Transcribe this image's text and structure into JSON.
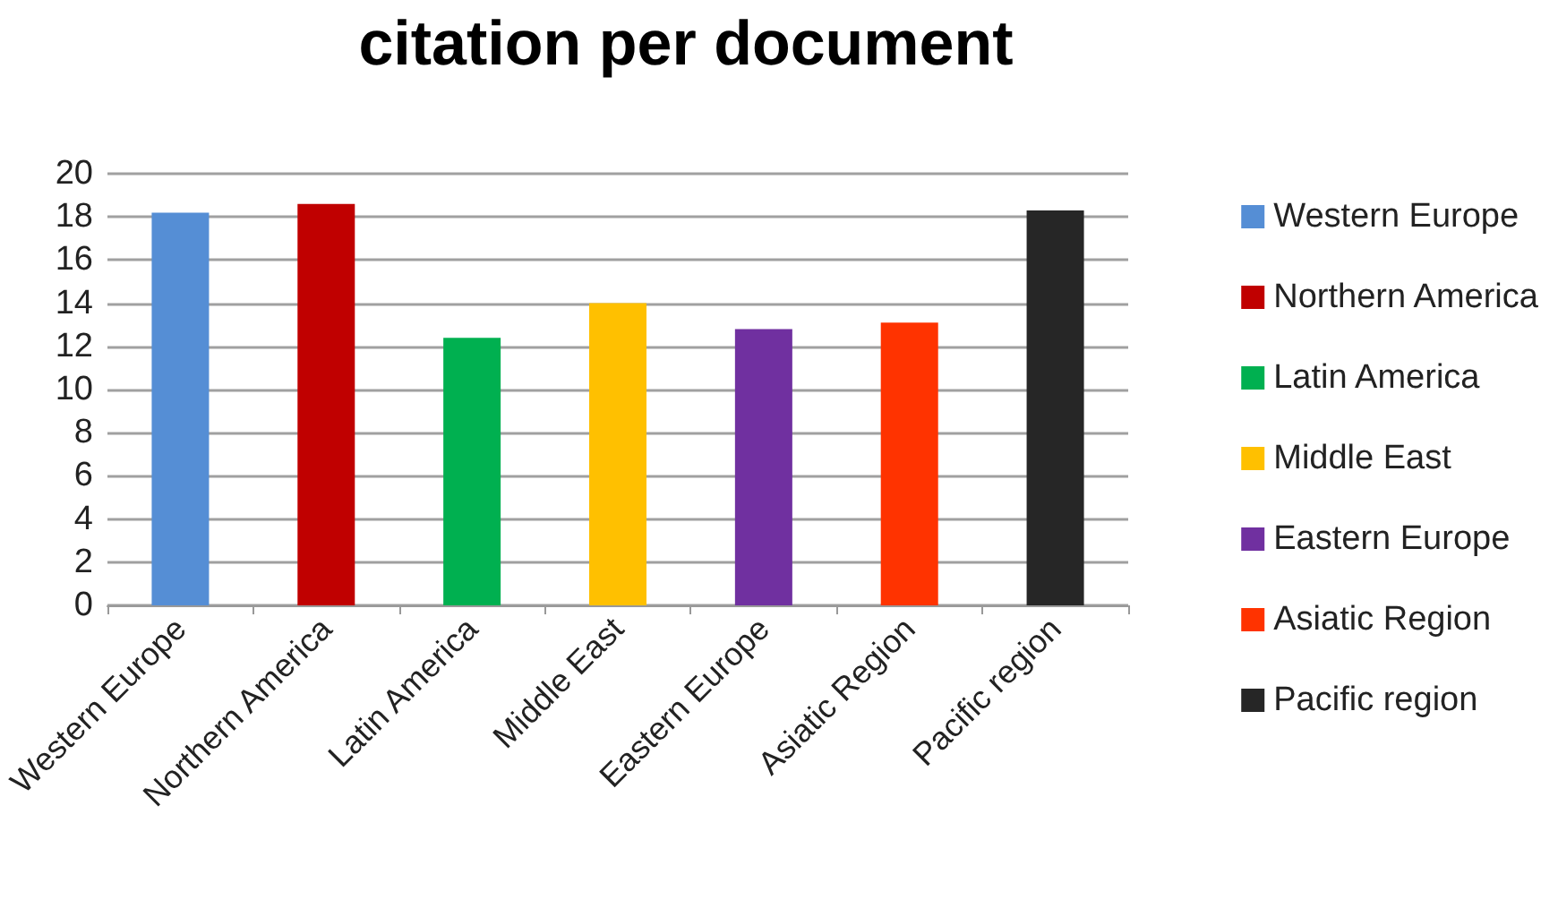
{
  "chart_data": {
    "type": "bar",
    "title": "citation per document",
    "stacked": true,
    "categories": [
      "Western Europe",
      "Northern America",
      "Latin America",
      "Middle East",
      "Eastern Europe",
      "Asiatic Region",
      "Pacific region"
    ],
    "series": [
      {
        "name": "Western Europe",
        "color": "#558ed5",
        "values": [
          18.2,
          null,
          null,
          null,
          null,
          null,
          null
        ]
      },
      {
        "name": "Northern America",
        "color": "#c00000",
        "values": [
          null,
          18.6,
          null,
          null,
          null,
          null,
          null
        ]
      },
      {
        "name": "Latin America",
        "color": "#00b050",
        "values": [
          null,
          null,
          12.4,
          null,
          null,
          null,
          null
        ]
      },
      {
        "name": "Middle East",
        "color": "#ffc000",
        "values": [
          null,
          null,
          null,
          14.0,
          null,
          null,
          null
        ]
      },
      {
        "name": "Eastern Europe",
        "color": "#7030a0",
        "values": [
          null,
          null,
          null,
          null,
          12.8,
          null,
          null
        ]
      },
      {
        "name": "Asiatic Region",
        "color": "#ff3300",
        "values": [
          null,
          null,
          null,
          null,
          null,
          13.1,
          null
        ]
      },
      {
        "name": "Pacific region",
        "color": "#262626",
        "values": [
          null,
          null,
          null,
          null,
          null,
          null,
          18.3
        ]
      }
    ],
    "ylim": [
      0,
      20
    ],
    "yticks": [
      0,
      2,
      4,
      6,
      8,
      10,
      12,
      14,
      16,
      18,
      20
    ],
    "grid": "y",
    "legend": "right"
  }
}
